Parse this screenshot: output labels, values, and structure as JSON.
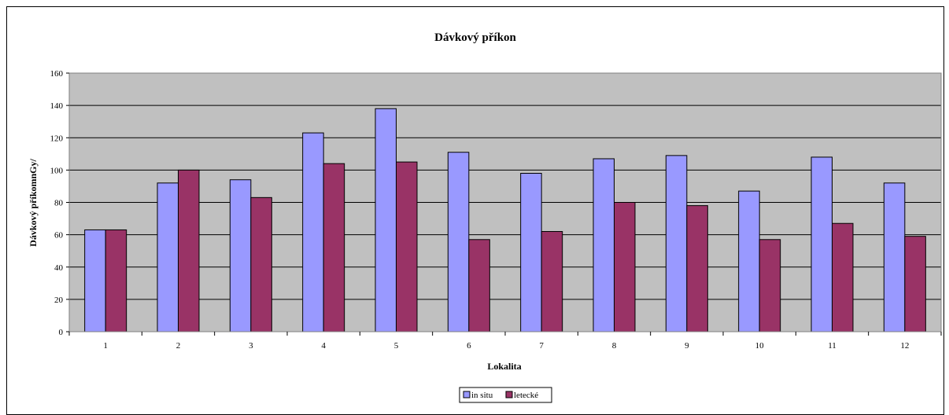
{
  "chart_data": {
    "type": "bar",
    "title": "Dávkový příkon",
    "xlabel": "Lokalita",
    "ylabel": "Dávkový příkomnGy/",
    "categories": [
      "1",
      "2",
      "3",
      "4",
      "5",
      "6",
      "7",
      "8",
      "9",
      "10",
      "11",
      "12"
    ],
    "series": [
      {
        "name": "in situ",
        "color": "#9999ff",
        "values": [
          63,
          92,
          94,
          123,
          138,
          111,
          98,
          107,
          109,
          87,
          108,
          92
        ]
      },
      {
        "name": "letecké",
        "color": "#993366",
        "values": [
          63,
          100,
          83,
          104,
          105,
          57,
          62,
          80,
          78,
          57,
          67,
          59
        ]
      }
    ],
    "ylim": [
      0,
      160
    ],
    "yticks": [
      "0",
      "20",
      "40",
      "60",
      "80",
      "100",
      "120",
      "140",
      "160"
    ],
    "grid": true,
    "plot_background": "#c0c0c0",
    "legend_position": "bottom"
  }
}
